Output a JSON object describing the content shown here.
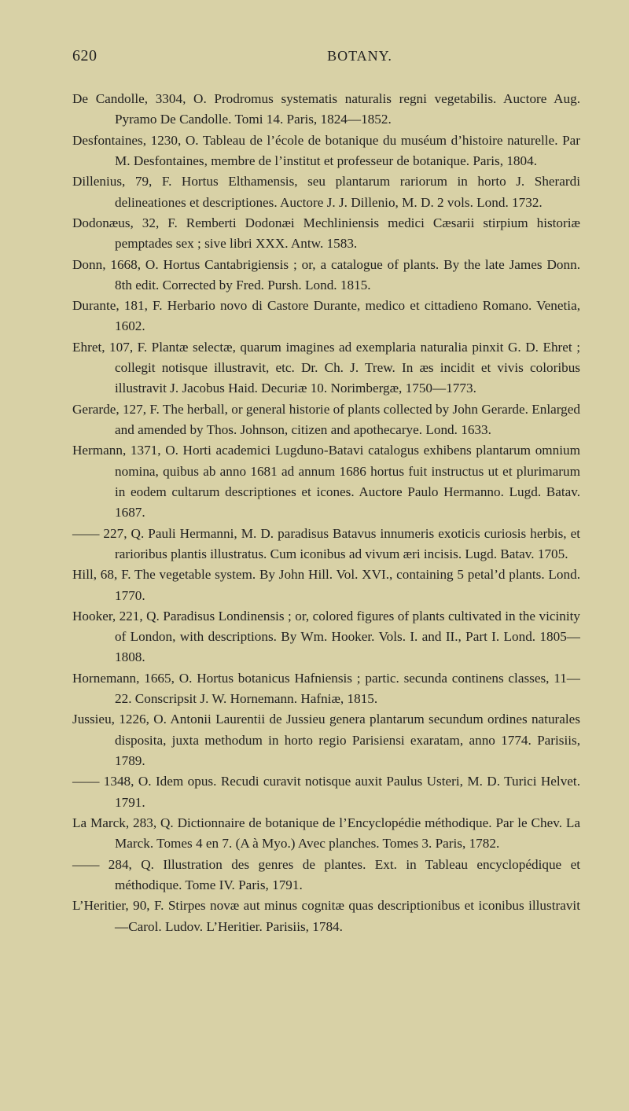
{
  "page_number": "620",
  "running_head": "BOTANY.",
  "text_color": "#222120",
  "background_color": "#d8d1a6",
  "body_fontsize_pt": 12.9,
  "line_height": 1.53,
  "entries": [
    "De Candolle, 3304, O.  Prodromus systematis naturalis regni vegetabilis. Auctore Aug. Pyramo De Candolle.  Tomi 14.  Paris, 1824—1852.",
    "Desfontaines, 1230, O.  Tableau de l’école de botanique du muséum d’histoire naturelle.  Par M. Desfontaines, membre de l’institut et professeur de botanique.  Paris, 1804.",
    "Dillenius, 79, F.  Hortus Elthamensis, seu plantarum rariorum in horto J. Sherardi delineationes et descriptiones.  Auctore J. J. Dillenio, M. D. 2 vols.  Lond. 1732.",
    "Dodonæus, 32, F.  Remberti Dodonæi Mechliniensis medici Cæsarii stirpium historiæ pemptades sex ; sive libri XXX.  Antw. 1583.",
    "Donn, 1668, O.  Hortus Cantabrigiensis ; or, a catalogue of plants.  By the late James Donn.  8th edit.  Corrected by Fred. Pursh.  Lond. 1815.",
    "Durante, 181, F.  Herbario novo di Castore Durante, medico et cittadieno Romano.  Venetia, 1602.",
    "Ehret, 107, F.  Plantæ selectæ, quarum imagines ad exemplaria naturalia pinxit G. D. Ehret ; collegit notisque illustravit, etc.  Dr. Ch. J. Trew. In æs incidit et vivis coloribus illustravit J. Jacobus Haid.  Decuriæ 10.  Norimbergæ, 1750—1773.",
    "Gerarde, 127, F.  The herball, or general historie of plants collected by John Gerarde.  Enlarged and amended by Thos. Johnson, citizen and apothecarye.  Lond. 1633.",
    "Hermann, 1371, O.  Horti academici Lugduno-Batavi catalogus exhibens plantarum omnium nomina, quibus ab anno 1681 ad annum 1686 hortus fuit instructus ut et plurimarum in eodem cultarum descriptiones et icones.  Auctore Paulo Hermanno.  Lugd. Batav. 1687.",
    "—— 227, Q.  Pauli Hermanni, M. D. paradisus Batavus innumeris exoticis curiosis herbis, et rarioribus plantis illustratus.  Cum iconibus ad vivum æri incisis.  Lugd. Batav. 1705.",
    "Hill, 68, F.  The vegetable system.  By John Hill.  Vol. XVI., containing 5 petal’d plants.  Lond. 1770.",
    "Hooker, 221, Q.  Paradisus Londinensis ; or, colored figures of plants cultivated in the vicinity of London, with descriptions.  By Wm. Hooker. Vols. I. and II., Part I.  Lond. 1805—1808.",
    "Hornemann, 1665, O.  Hortus botanicus Hafniensis ; partic. secunda continens classes, 11—22.  Conscripsit J. W. Hornemann.  Hafniæ, 1815.",
    "Jussieu, 1226, O.  Antonii Laurentii de Jussieu genera plantarum secundum ordines naturales disposita, juxta methodum in horto regio Parisiensi exaratam, anno 1774.  Parisiis, 1789.",
    "—— 1348, O.  Idem opus.  Recudi curavit notisque auxit Paulus Usteri, M. D.  Turici Helvet. 1791.",
    "La Marck, 283, Q.  Dictionnaire de botanique de l’Encyclopédie méthodique. Par le Chev. La Marck.  Tomes 4 en 7.  (A à Myo.)  Avec planches. Tomes 3.  Paris, 1782.",
    "—— 284, Q.  Illustration des genres de plantes.  Ext. in Tableau encyclopédique et méthodique.  Tome IV.  Paris, 1791.",
    "L’Heritier, 90, F.  Stirpes novæ aut minus cognitæ quas descriptionibus et iconibus illustravit—Carol. Ludov. L’Heritier.  Parisiis, 1784."
  ]
}
